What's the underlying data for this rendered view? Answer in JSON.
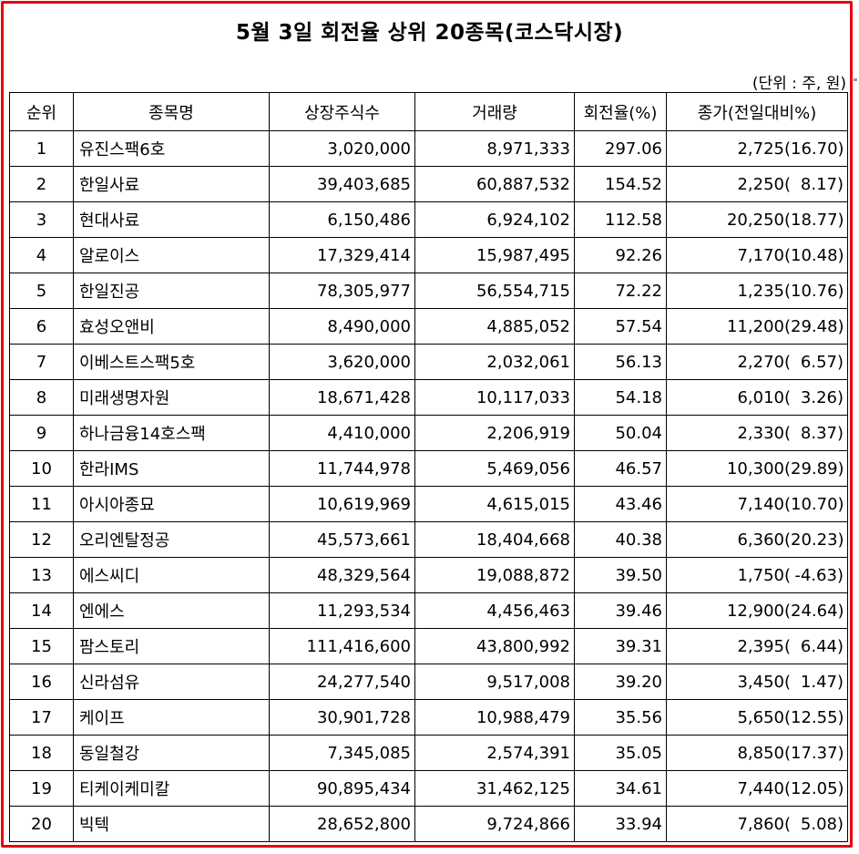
{
  "title": "5월 3일 회전율 상위 20종목(코스닥시장)",
  "unit_note": "(단위 : 주, 원)",
  "columns": [
    "순위",
    "종목명",
    "상장주식수",
    "거래량",
    "회전율(%)",
    "종가(전일대비%)"
  ],
  "rows": [
    {
      "rank": "1",
      "name": "유진스팩6호",
      "listed": "3,020,000",
      "volume": "8,971,333",
      "turnover": "297.06",
      "price": "2,725",
      "change": "16.70)"
    },
    {
      "rank": "2",
      "name": "한일사료",
      "listed": "39,403,685",
      "volume": "60,887,532",
      "turnover": "154.52",
      "price": "2,250",
      "change": "8.17)"
    },
    {
      "rank": "3",
      "name": "현대사료",
      "listed": "6,150,486",
      "volume": "6,924,102",
      "turnover": "112.58",
      "price": "20,250",
      "change": "18.77)"
    },
    {
      "rank": "4",
      "name": "알로이스",
      "listed": "17,329,414",
      "volume": "15,987,495",
      "turnover": "92.26",
      "price": "7,170",
      "change": "10.48)"
    },
    {
      "rank": "5",
      "name": "한일진공",
      "listed": "78,305,977",
      "volume": "56,554,715",
      "turnover": "72.22",
      "price": "1,235",
      "change": "10.76)"
    },
    {
      "rank": "6",
      "name": "효성오앤비",
      "listed": "8,490,000",
      "volume": "4,885,052",
      "turnover": "57.54",
      "price": "11,200",
      "change": "29.48)"
    },
    {
      "rank": "7",
      "name": "이베스트스팩5호",
      "listed": "3,620,000",
      "volume": "2,032,061",
      "turnover": "56.13",
      "price": "2,270",
      "change": "6.57)"
    },
    {
      "rank": "8",
      "name": "미래생명자원",
      "listed": "18,671,428",
      "volume": "10,117,033",
      "turnover": "54.18",
      "price": "6,010",
      "change": "3.26)"
    },
    {
      "rank": "9",
      "name": "하나금융14호스팩",
      "listed": "4,410,000",
      "volume": "2,206,919",
      "turnover": "50.04",
      "price": "2,330",
      "change": "8.37)"
    },
    {
      "rank": "10",
      "name": "한라IMS",
      "listed": "11,744,978",
      "volume": "5,469,056",
      "turnover": "46.57",
      "price": "10,300",
      "change": "29.89)"
    },
    {
      "rank": "11",
      "name": "아시아종묘",
      "listed": "10,619,969",
      "volume": "4,615,015",
      "turnover": "43.46",
      "price": "7,140",
      "change": "10.70)"
    },
    {
      "rank": "12",
      "name": "오리엔탈정공",
      "listed": "45,573,661",
      "volume": "18,404,668",
      "turnover": "40.38",
      "price": "6,360",
      "change": "20.23)"
    },
    {
      "rank": "13",
      "name": "에스씨디",
      "listed": "48,329,564",
      "volume": "19,088,872",
      "turnover": "39.50",
      "price": "1,750",
      "change": "-4.63)"
    },
    {
      "rank": "14",
      "name": "엔에스",
      "listed": "11,293,534",
      "volume": "4,456,463",
      "turnover": "39.46",
      "price": "12,900",
      "change": "24.64)"
    },
    {
      "rank": "15",
      "name": "팜스토리",
      "listed": "111,416,600",
      "volume": "43,800,992",
      "turnover": "39.31",
      "price": "2,395",
      "change": "6.44)"
    },
    {
      "rank": "16",
      "name": "신라섬유",
      "listed": "24,277,540",
      "volume": "9,517,008",
      "turnover": "39.20",
      "price": "3,450",
      "change": "1.47)"
    },
    {
      "rank": "17",
      "name": "케이프",
      "listed": "30,901,728",
      "volume": "10,988,479",
      "turnover": "35.56",
      "price": "5,650",
      "change": "12.55)"
    },
    {
      "rank": "18",
      "name": "동일철강",
      "listed": "7,345,085",
      "volume": "2,574,391",
      "turnover": "35.05",
      "price": "8,850",
      "change": "17.37)"
    },
    {
      "rank": "19",
      "name": "티케이케미칼",
      "listed": "90,895,434",
      "volume": "31,462,125",
      "turnover": "34.61",
      "price": "7,440",
      "change": "12.05)"
    },
    {
      "rank": "20",
      "name": "빅텍",
      "listed": "28,652,800",
      "volume": "9,724,866",
      "turnover": "33.94",
      "price": "7,860",
      "change": "5.08)"
    }
  ]
}
